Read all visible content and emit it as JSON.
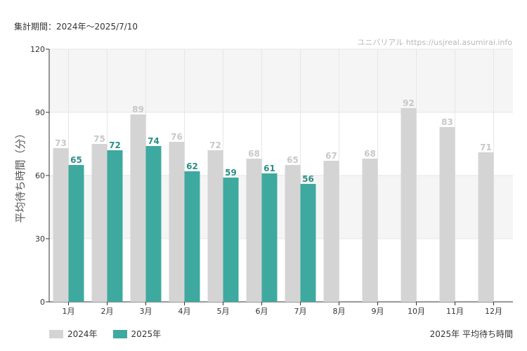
{
  "period_label": "集計期間：2024年～2025/7/10",
  "credit": "ユニバリアル  https://usjreal.asumirai.info",
  "footer_title": "2025年 平均待ち時間",
  "colors": {
    "y2024": "#d4d4d4",
    "y2025": "#3ea99f",
    "label2024": "#c8c8c8",
    "label2025": "#2a8f86"
  },
  "chart_data": {
    "type": "bar",
    "ylabel": "平均待ち時間（分）",
    "ylim": [
      0,
      120
    ],
    "yticks": [
      "0",
      "30",
      "60",
      "90",
      "120"
    ],
    "categories": [
      "1月",
      "2月",
      "3月",
      "4月",
      "5月",
      "6月",
      "7月",
      "8月",
      "9月",
      "10月",
      "11月",
      "12月"
    ],
    "series": [
      {
        "name": "2024年",
        "values": [
          73,
          75,
          89,
          76,
          72,
          68,
          65,
          67,
          68,
          92,
          83,
          71
        ]
      },
      {
        "name": "2025年",
        "values": [
          65,
          72,
          74,
          62,
          59,
          61,
          56,
          null,
          null,
          null,
          null,
          null
        ]
      }
    ],
    "legend_position": "bottom-left",
    "grid": true
  }
}
